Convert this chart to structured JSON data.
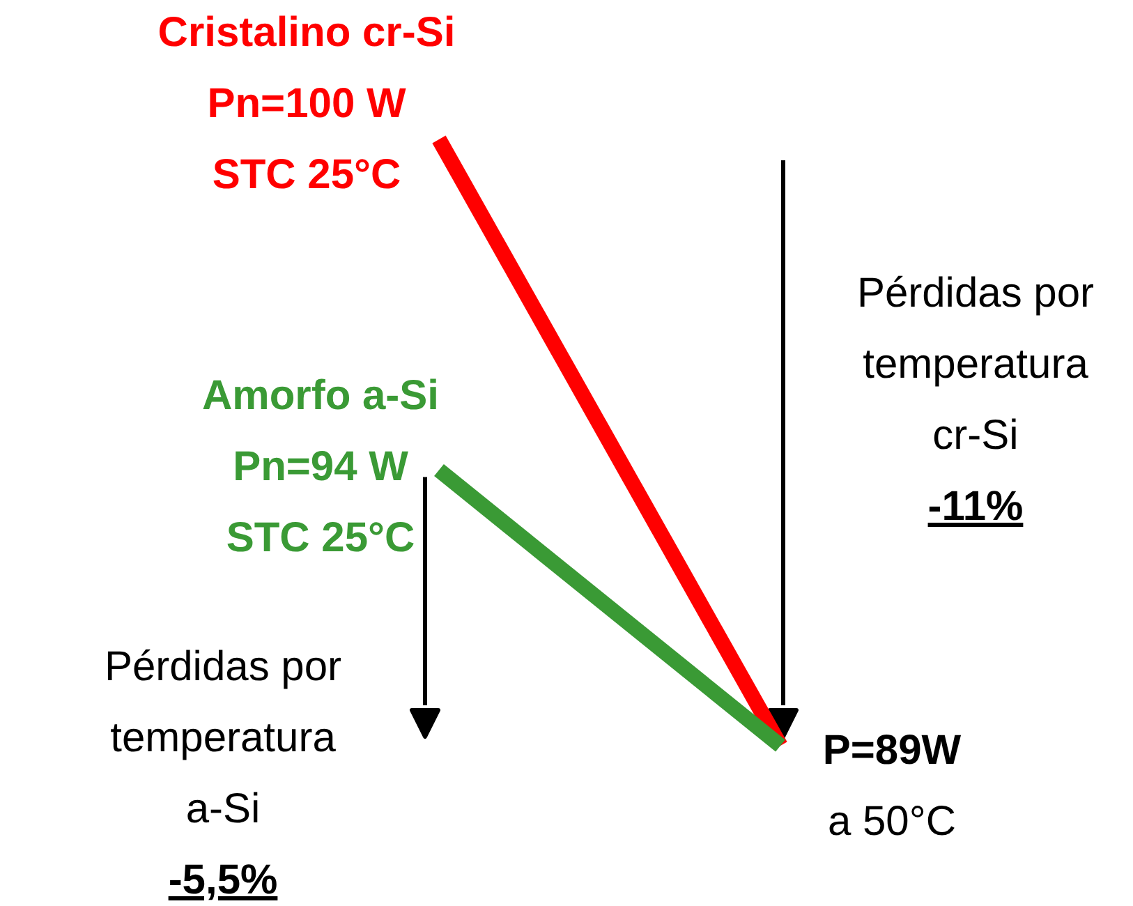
{
  "chart_data": {
    "type": "line",
    "categories": [
      null,
      null
    ],
    "line_style": "solid",
    "series": [
      {
        "name": "Cristalino cr-Si",
        "color": "#ff0000",
        "values": [
          100,
          89
        ],
        "value_labels": [
          "Pn=100 W\nSTC 25°C",
          "P=89W\na 50°C"
        ]
      },
      {
        "name": "Amorfo a-Si",
        "color": "#3a9a35",
        "values": [
          94,
          89
        ],
        "value_labels": [
          "Pn=94 W\nSTC 25°C",
          null
        ]
      }
    ],
    "annotations": [
      "Pérdidas por\ntemperatura\ncr-Si\n-11%",
      "Pérdidas por\ntemperatura\na-Si\n-5,5%"
    ]
  }
}
